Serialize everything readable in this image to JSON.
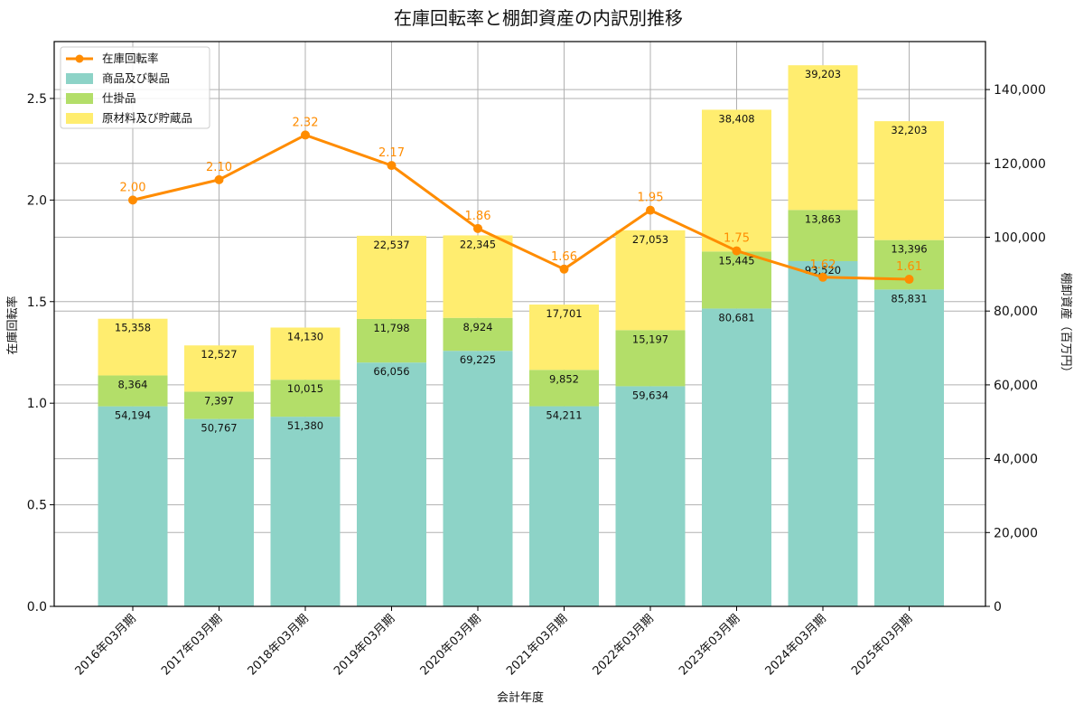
{
  "chart_data": {
    "type": "bar",
    "title": "在庫回転率と棚卸資産の内訳別推移",
    "xlabel": "会計年度",
    "ylabel_left": "在庫回転率",
    "ylabel_right": "棚卸資産（百万円）",
    "categories": [
      "2016年03月期",
      "2017年03月期",
      "2018年03月期",
      "2019年03月期",
      "2020年03月期",
      "2021年03月期",
      "2022年03月期",
      "2023年03月期",
      "2024年03月期",
      "2025年03月期"
    ],
    "stacked": true,
    "series": [
      {
        "name": "商品及び製品",
        "color": "#8dd3c7",
        "values": [
          54194,
          50767,
          51380,
          66056,
          69225,
          54211,
          59634,
          80681,
          93520,
          85831
        ],
        "labels": [
          "54,194",
          "50,767",
          "51,380",
          "66,056",
          "69,225",
          "54,211",
          "59,634",
          "80,681",
          "93,520",
          "85,831"
        ]
      },
      {
        "name": "仕掛品",
        "color": "#b3de69",
        "values": [
          8364,
          7397,
          10015,
          11798,
          8924,
          9852,
          15197,
          15445,
          13863,
          13396
        ],
        "labels": [
          "8,364",
          "7,397",
          "10,015",
          "11,798",
          "8,924",
          "9,852",
          "15,197",
          "15,445",
          "13,863",
          "13,396"
        ]
      },
      {
        "name": "原材料及び貯蔵品",
        "color": "#ffed6f",
        "values": [
          15358,
          12527,
          14130,
          22537,
          22345,
          17701,
          27053,
          38408,
          39203,
          32203
        ],
        "labels": [
          "15,358",
          "12,527",
          "14,130",
          "22,537",
          "22,345",
          "17,701",
          "27,053",
          "38,408",
          "39,203",
          "32,203"
        ]
      }
    ],
    "line": {
      "name": "在庫回転率",
      "color": "#ff8c00",
      "values": [
        2.0,
        2.1,
        2.32,
        2.17,
        1.86,
        1.66,
        1.95,
        1.75,
        1.62,
        1.61
      ],
      "labels": [
        "2.00",
        "2.10",
        "2.32",
        "2.17",
        "1.86",
        "1.66",
        "1.95",
        "1.75",
        "1.62",
        "1.61"
      ]
    },
    "ylim_left": [
      0,
      2.78
    ],
    "yticks_left": [
      "0.0",
      "0.5",
      "1.0",
      "1.5",
      "2.0",
      "2.5"
    ],
    "yticks_left_values": [
      0,
      0.5,
      1.0,
      1.5,
      2.0,
      2.5
    ],
    "ylim_right": [
      0,
      153000
    ],
    "yticks_right": [
      "0",
      "20,000",
      "40,000",
      "60,000",
      "80,000",
      "100,000",
      "120,000",
      "140,000"
    ],
    "yticks_right_values": [
      0,
      20000,
      40000,
      60000,
      80000,
      100000,
      120000,
      140000
    ],
    "grid": true,
    "legend_position": "top-left"
  }
}
